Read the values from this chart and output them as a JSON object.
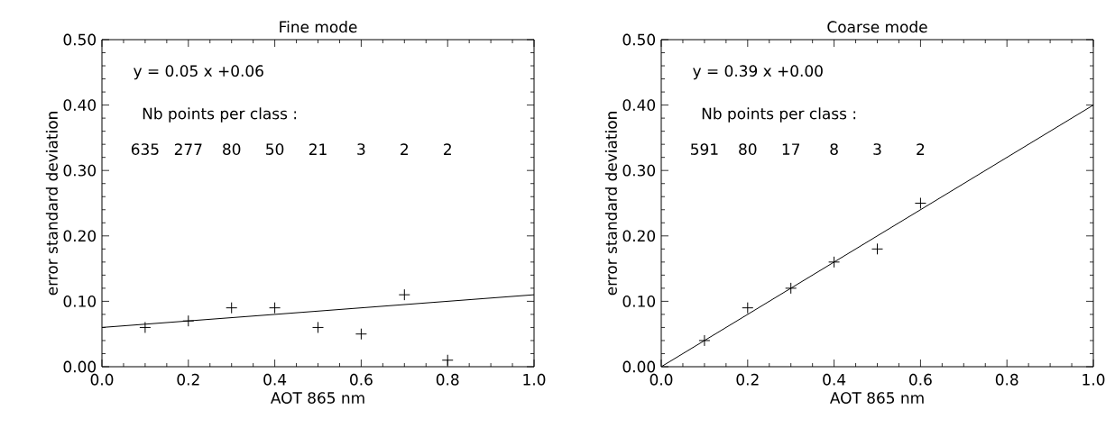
{
  "chart_data": [
    {
      "type": "scatter",
      "title": "Fine mode",
      "xlabel": "AOT 865 nm",
      "ylabel": "error standard deviation",
      "xlim": [
        0,
        1
      ],
      "ylim": [
        0,
        0.5
      ],
      "xticks": [
        {
          "value": 0,
          "label": "0.0"
        },
        {
          "value": 0.2,
          "label": "0.2"
        },
        {
          "value": 0.4,
          "label": "0.4"
        },
        {
          "value": 0.6,
          "label": "0.6"
        },
        {
          "value": 0.8,
          "label": "0.8"
        },
        {
          "value": 1,
          "label": "1.0"
        }
      ],
      "yticks": [
        {
          "value": 0,
          "label": "0.00"
        },
        {
          "value": 0.1,
          "label": "0.10"
        },
        {
          "value": 0.2,
          "label": "0.20"
        },
        {
          "value": 0.3,
          "label": "0.30"
        },
        {
          "value": 0.4,
          "label": "0.40"
        },
        {
          "value": 0.5,
          "label": "0.50"
        }
      ],
      "annotations": [
        "y = 0.05 x +0.06",
        "Nb points per class :",
        "635",
        "277",
        "80",
        "50",
        "21",
        "3",
        "2",
        "2"
      ],
      "series": [
        {
          "marker": "cross",
          "color": "#000000",
          "x": [
            0.1,
            0.2,
            0.3,
            0.4,
            0.5,
            0.6,
            0.7,
            0.8
          ],
          "values": [
            0.06,
            0.07,
            0.09,
            0.09,
            0.06,
            0.05,
            0.11,
            0.01
          ]
        },
        {
          "type": "line",
          "color": "#000000",
          "x": [
            0,
            1
          ],
          "values": [
            0.06,
            0.11
          ]
        }
      ]
    },
    {
      "type": "scatter",
      "title": "Coarse mode",
      "xlabel": "AOT 865 nm",
      "ylabel": "error standard deviation",
      "xlim": [
        0,
        1
      ],
      "ylim": [
        0,
        0.5
      ],
      "xticks": [
        {
          "value": 0,
          "label": "0.0"
        },
        {
          "value": 0.2,
          "label": "0.2"
        },
        {
          "value": 0.4,
          "label": "0.4"
        },
        {
          "value": 0.6,
          "label": "0.6"
        },
        {
          "value": 0.8,
          "label": "0.8"
        },
        {
          "value": 1,
          "label": "1.0"
        }
      ],
      "yticks": [
        {
          "value": 0,
          "label": "0.00"
        },
        {
          "value": 0.1,
          "label": "0.10"
        },
        {
          "value": 0.2,
          "label": "0.20"
        },
        {
          "value": 0.3,
          "label": "0.30"
        },
        {
          "value": 0.4,
          "label": "0.40"
        },
        {
          "value": 0.5,
          "label": "0.50"
        }
      ],
      "annotations": [
        "y = 0.39 x +0.00",
        "Nb points per class :",
        "591",
        "80",
        "17",
        "8",
        "3",
        "2"
      ],
      "series": [
        {
          "marker": "cross",
          "color": "#000000",
          "x": [
            0.1,
            0.2,
            0.3,
            0.4,
            0.5,
            0.6
          ],
          "values": [
            0.04,
            0.09,
            0.12,
            0.16,
            0.18,
            0.25
          ]
        },
        {
          "type": "line",
          "color": "#000000",
          "x": [
            0,
            1
          ],
          "values": [
            0.0,
            0.4
          ]
        }
      ]
    }
  ]
}
